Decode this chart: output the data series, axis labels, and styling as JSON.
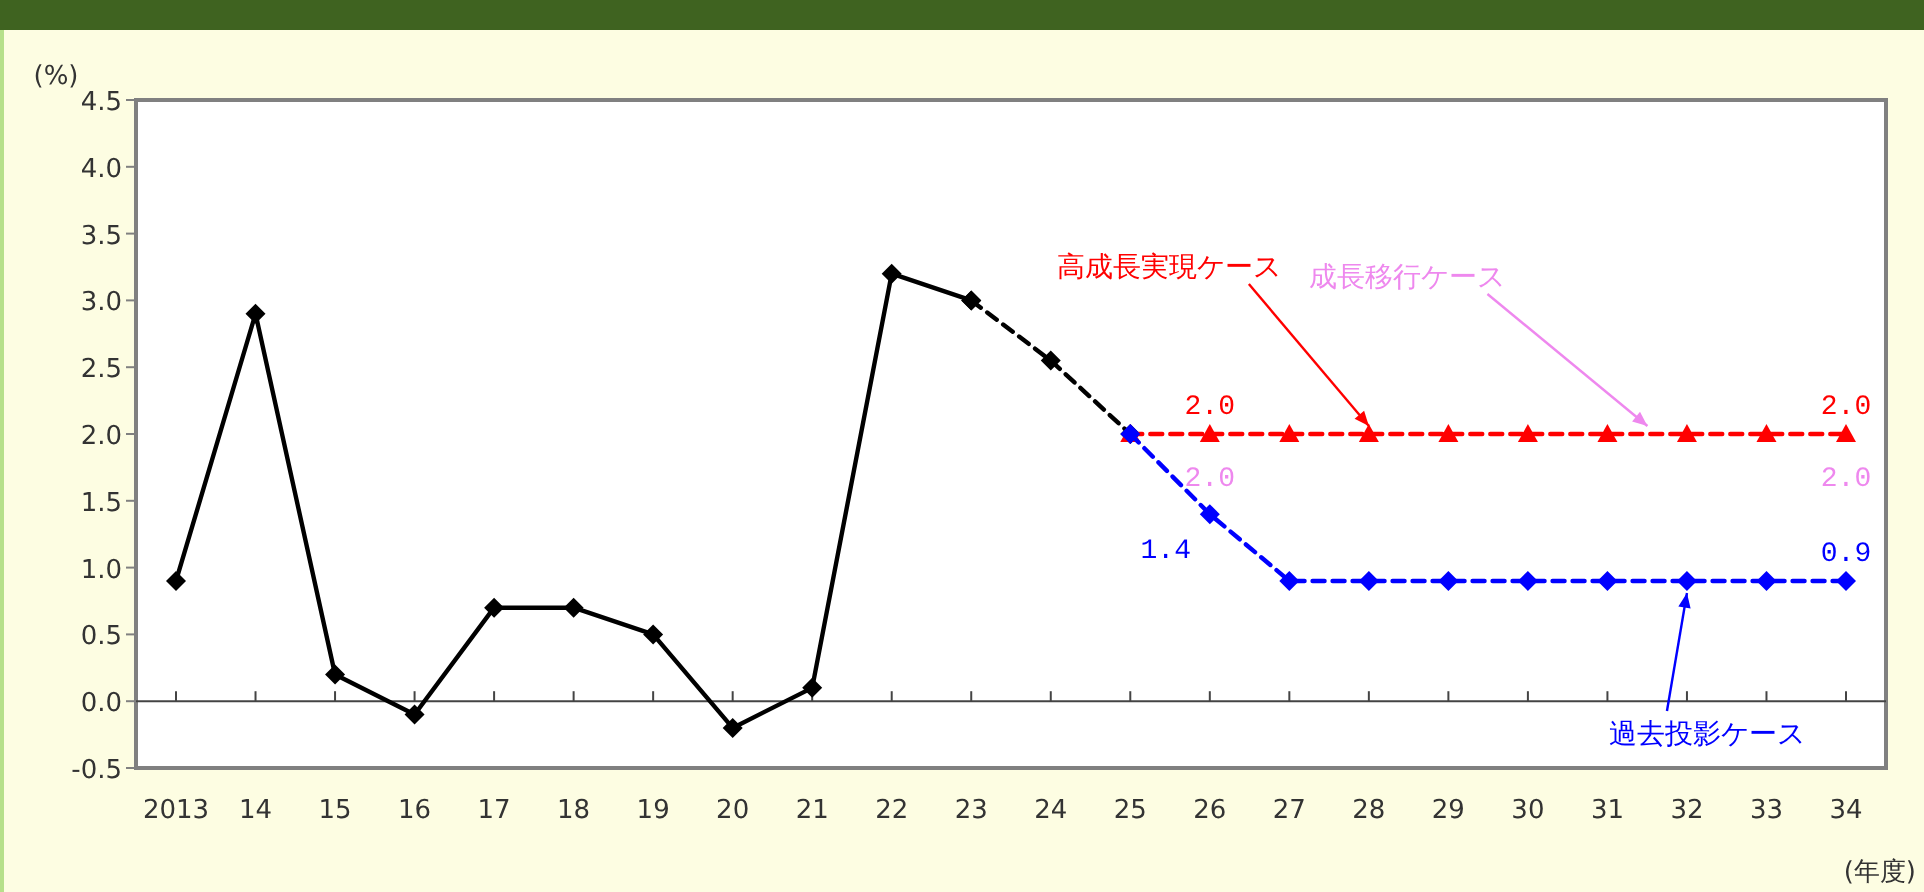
{
  "chart_data": {
    "type": "line",
    "ylabel": "(%)",
    "xlabel": "(年度)",
    "categories": [
      "2013",
      "14",
      "15",
      "16",
      "17",
      "18",
      "19",
      "20",
      "21",
      "22",
      "23",
      "24",
      "25",
      "26",
      "27",
      "28",
      "29",
      "30",
      "31",
      "32",
      "33",
      "34"
    ],
    "series": [
      {
        "color": "#000000",
        "marker": "diamond",
        "line_style": "solid",
        "values": [
          0.9,
          2.9,
          0.2,
          -0.1,
          0.7,
          0.7,
          0.5,
          -0.2,
          0.1,
          3.2,
          3.0,
          null,
          null,
          null,
          null,
          null,
          null,
          null,
          null,
          null,
          null,
          null
        ]
      },
      {
        "color": "#000000",
        "marker": "diamond",
        "line_style": "dashed",
        "values": [
          null,
          null,
          null,
          null,
          null,
          null,
          null,
          null,
          null,
          null,
          3.0,
          2.55,
          2.0,
          null,
          null,
          null,
          null,
          null,
          null,
          null,
          null,
          null
        ]
      },
      {
        "name": "成長移行ケース",
        "color": "#ee88ee",
        "values": [
          null,
          null,
          null,
          null,
          null,
          null,
          null,
          null,
          null,
          null,
          null,
          null,
          null,
          null,
          null,
          null,
          null,
          null,
          null,
          null,
          null,
          null
        ],
        "value_labels": [
          null,
          null,
          null,
          null,
          null,
          null,
          null,
          null,
          null,
          null,
          null,
          null,
          null,
          "2.0",
          null,
          null,
          null,
          null,
          null,
          null,
          null,
          "2.0"
        ]
      },
      {
        "name": "高成長実現ケース",
        "color": "#ff0000",
        "marker": "triangle",
        "line_style": "dashed",
        "values": [
          null,
          null,
          null,
          null,
          null,
          null,
          null,
          null,
          null,
          null,
          null,
          null,
          2.0,
          2.0,
          2.0,
          2.0,
          2.0,
          2.0,
          2.0,
          2.0,
          2.0,
          2.0
        ],
        "value_labels": [
          null,
          null,
          null,
          null,
          null,
          null,
          null,
          null,
          null,
          null,
          null,
          null,
          null,
          "2.0",
          null,
          null,
          null,
          null,
          null,
          null,
          null,
          "2.0"
        ]
      },
      {
        "name": "過去投影ケース",
        "color": "#0000ff",
        "marker": "diamond",
        "line_style": "dashed",
        "values": [
          null,
          null,
          null,
          null,
          null,
          null,
          null,
          null,
          null,
          null,
          null,
          null,
          2.0,
          1.4,
          0.9,
          0.9,
          0.9,
          0.9,
          0.9,
          0.9,
          0.9,
          0.9
        ],
        "value_labels": [
          null,
          null,
          null,
          null,
          null,
          null,
          null,
          null,
          null,
          null,
          null,
          null,
          null,
          "1.4",
          null,
          null,
          null,
          null,
          null,
          null,
          null,
          "0.9"
        ]
      }
    ],
    "ylim": [
      -0.5,
      4.5
    ],
    "yticks": [
      {
        "value": -0.5,
        "label": "-0.5"
      },
      {
        "value": 0,
        "label": "0.0"
      },
      {
        "value": 0.5,
        "label": "0.5"
      },
      {
        "value": 1,
        "label": "1.0"
      },
      {
        "value": 1.5,
        "label": "1.5"
      },
      {
        "value": 2,
        "label": "2.0"
      },
      {
        "value": 2.5,
        "label": "2.5"
      },
      {
        "value": 3,
        "label": "3.0"
      },
      {
        "value": 3.5,
        "label": "3.5"
      },
      {
        "value": 4,
        "label": "4.0"
      },
      {
        "value": 4.5,
        "label": "4.5"
      }
    ]
  }
}
